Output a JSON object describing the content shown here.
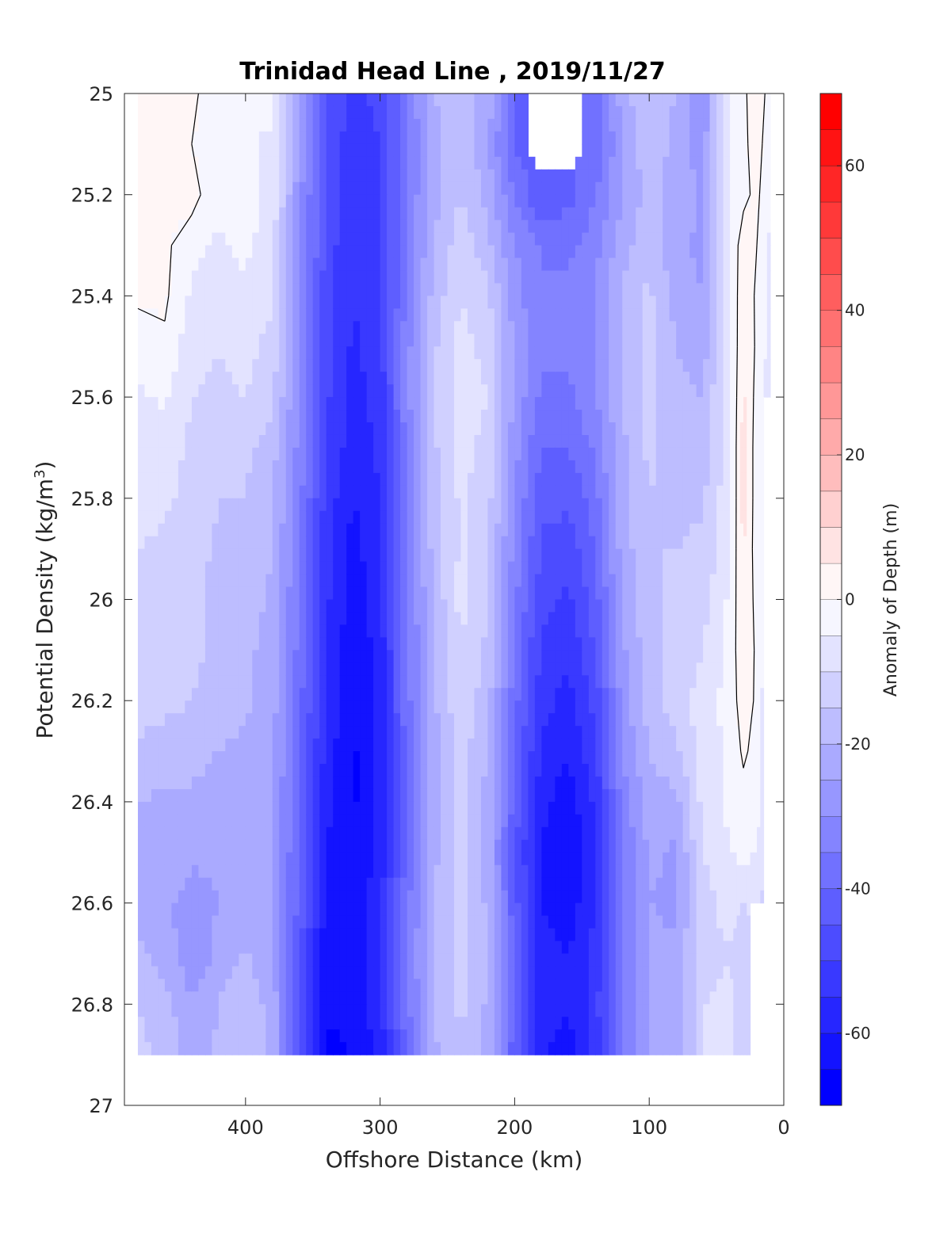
{
  "chart_data": {
    "type": "heatmap",
    "title": "Trinidad Head Line , 2019/11/27",
    "xlabel": "Offshore Distance (km)",
    "ylabel_main": "Potential Density (kg/m",
    "ylabel_sup": "3",
    "ylabel_close": ")",
    "colorbar_label": "Anomaly of Depth (m)",
    "xlim": [
      490,
      0
    ],
    "x_reversed": true,
    "ylim": [
      25,
      27
    ],
    "y_reversed": true,
    "clim": [
      -70,
      70
    ],
    "contour_step": 5,
    "x_ticks": [
      400,
      300,
      200,
      100,
      0
    ],
    "x_tick_labels": [
      "400",
      "300",
      "200",
      "100",
      "0"
    ],
    "y_ticks": [
      25,
      25.2,
      25.4,
      25.6,
      25.8,
      26,
      26.2,
      26.4,
      26.6,
      26.8,
      27
    ],
    "y_tick_labels": [
      "25",
      "25.2",
      "25.4",
      "25.6",
      "25.8",
      "26",
      "26.2",
      "26.4",
      "26.6",
      "26.8",
      "27"
    ],
    "colorbar_ticks": [
      -60,
      -40,
      -20,
      0,
      20,
      40,
      60
    ],
    "colorbar_tick_labels": [
      "-60",
      "-40",
      "-20",
      "0",
      "20",
      "40",
      "60"
    ],
    "zero_contour": true,
    "colors": {
      "negative": "#0000ff",
      "positive": "#ff0000",
      "zero": "#ffffff",
      "contour_line": "#000000"
    },
    "grid": {
      "x": [
        480,
        460,
        440,
        420,
        400,
        380,
        360,
        340,
        320,
        300,
        280,
        260,
        240,
        220,
        200,
        180,
        160,
        140,
        120,
        100,
        80,
        60,
        40,
        30,
        20,
        10
      ],
      "y": [
        25,
        25.1,
        25.2,
        25.3,
        25.4,
        25.5,
        25.6,
        25.7,
        25.8,
        25.9,
        26,
        26.1,
        26.2,
        26.3,
        26.4,
        26.5,
        26.6,
        26.7,
        26.8,
        26.9
      ],
      "valid_x_min": [
        480,
        480,
        480,
        480,
        480,
        480,
        480,
        480,
        480,
        480,
        480,
        480,
        480,
        480,
        480,
        480,
        480,
        480,
        480,
        480,
        480,
        480,
        480,
        480,
        480,
        480
      ],
      "valid_y_max_by_x": [
        26.9,
        26.9,
        26.9,
        26.9,
        26.9,
        26.9,
        26.9,
        26.9,
        26.9,
        26.9,
        26.9,
        26.9,
        26.9,
        26.9,
        26.9,
        26.9,
        26.9,
        26.9,
        26.9,
        26.9,
        26.9,
        26.9,
        26.9,
        26.9,
        26.6,
        25.6
      ],
      "z": [
        [
          2,
          1,
          1,
          -3,
          -5,
          -3,
          -25,
          -45,
          -52,
          -48,
          -35,
          -20,
          -18,
          -22,
          -40,
          null,
          null,
          -38,
          -22,
          -15,
          -20,
          -30,
          -2,
          -1,
          3,
          -2
        ],
        [
          3,
          2,
          0,
          -2,
          -4,
          -6,
          -27,
          -46,
          -53,
          -50,
          -36,
          -22,
          -16,
          -24,
          -42,
          null,
          null,
          -40,
          -25,
          -16,
          -22,
          -28,
          -2,
          -1,
          2,
          -3
        ],
        [
          3,
          1,
          2,
          -4,
          -2,
          -7,
          -28,
          -47,
          -54,
          -50,
          -35,
          -22,
          -15,
          -22,
          -35,
          -45,
          -42,
          -35,
          -25,
          -18,
          -22,
          -26,
          -2,
          -1,
          1,
          -4
        ],
        [
          2,
          1,
          -3,
          -6,
          -4,
          -8,
          -28,
          -47,
          -55,
          -51,
          -34,
          -20,
          -12,
          -18,
          -30,
          -36,
          -36,
          -32,
          -22,
          -16,
          -24,
          -26,
          -3,
          2,
          0,
          -6
        ],
        [
          1,
          1,
          -6,
          -8,
          -6,
          -9,
          -28,
          -48,
          -55,
          -52,
          -33,
          -18,
          -10,
          -14,
          -28,
          -34,
          -34,
          -30,
          -20,
          -14,
          -22,
          -25,
          -5,
          4,
          -1,
          -7
        ],
        [
          -3,
          -1,
          -8,
          -10,
          -8,
          -12,
          -28,
          -48,
          -56,
          -52,
          -32,
          -16,
          -8,
          -12,
          -26,
          -34,
          -34,
          -30,
          -20,
          -14,
          -20,
          -23,
          -6,
          5,
          -1,
          -7
        ],
        [
          -6,
          -4,
          -10,
          -12,
          -10,
          -14,
          -30,
          -49,
          -57,
          -53,
          -32,
          -15,
          -7,
          -10,
          -26,
          -36,
          -36,
          -31,
          -20,
          -14,
          -18,
          -20,
          -6,
          6,
          -2,
          -8
        ],
        [
          -7,
          -7,
          -11,
          -14,
          -14,
          -18,
          -32,
          -50,
          -58,
          -54,
          -33,
          -16,
          -8,
          -12,
          -28,
          -40,
          -40,
          -34,
          -21,
          -14,
          -18,
          -18,
          -6,
          7,
          -3,
          -8
        ],
        [
          -8,
          -9,
          -12,
          -15,
          -15,
          -19,
          -33,
          -52,
          -60,
          -55,
          -34,
          -17,
          -9,
          -13,
          -30,
          -43,
          -44,
          -37,
          -22,
          -15,
          -16,
          -16,
          -6,
          7,
          -3,
          -8
        ],
        [
          -10,
          -11,
          -13,
          -16,
          -17,
          -20,
          -35,
          -53,
          -62,
          -56,
          -35,
          -18,
          -9,
          -14,
          -32,
          -46,
          -48,
          -40,
          -23,
          -15,
          -15,
          -14,
          -5,
          6,
          -3,
          -8
        ],
        [
          -11,
          -12,
          -13,
          -17,
          -18,
          -21,
          -36,
          -54,
          -63,
          -57,
          -36,
          -19,
          -8,
          -15,
          -34,
          -48,
          -51,
          -42,
          -24,
          -16,
          -14,
          -12,
          -4,
          5,
          -2,
          -9
        ],
        [
          -12,
          -13,
          -13,
          -17,
          -19,
          -22,
          -37,
          -55,
          -64,
          -58,
          -37,
          -20,
          -10,
          -16,
          -36,
          -51,
          -54,
          -45,
          -26,
          -17,
          -13,
          -10,
          -3,
          4,
          -1,
          -10
        ],
        [
          -13,
          -14,
          -15,
          -18,
          -19,
          -23,
          -38,
          -56,
          -65,
          -58,
          -37,
          -21,
          -11,
          -18,
          -38,
          -53,
          -57,
          -48,
          -28,
          -18,
          -12,
          -8,
          -3,
          3,
          -1,
          -12
        ],
        [
          -16,
          -17,
          -18,
          -20,
          -21,
          -24,
          -39,
          -57,
          -66,
          -59,
          -38,
          -22,
          -13,
          -20,
          -40,
          -56,
          -60,
          -51,
          -30,
          -20,
          -16,
          -7,
          -4,
          1,
          -2,
          -12
        ],
        [
          -20,
          -21,
          -21,
          -22,
          -22,
          -25,
          -40,
          -58,
          -66,
          -59,
          -38,
          -22,
          -14,
          -22,
          -42,
          -58,
          -63,
          -54,
          -33,
          -22,
          -22,
          -8,
          -4,
          -2,
          -3,
          -13
        ],
        [
          -21,
          -22,
          -24,
          -24,
          -22,
          -25,
          -41,
          -60,
          -65,
          -58,
          -38,
          -21,
          -14,
          -22,
          -44,
          -61,
          -65,
          -56,
          -35,
          -24,
          -26,
          -10,
          -5,
          -4,
          -5,
          -14
        ],
        [
          -22,
          -24,
          -27,
          -25,
          -21,
          -24,
          -42,
          -62,
          -64,
          -57,
          -37,
          -20,
          -14,
          -21,
          -43,
          -60,
          -63,
          -55,
          -36,
          -25,
          -26,
          -12,
          -8,
          -10,
          -8,
          -15
        ],
        [
          -19,
          -23,
          -28,
          -24,
          -20,
          -23,
          -43,
          -63,
          -63,
          -56,
          -36,
          -19,
          -13,
          -20,
          -42,
          -58,
          -60,
          -53,
          -35,
          -24,
          -24,
          -12,
          -10,
          -14,
          -12,
          -16
        ],
        [
          -15,
          -18,
          -25,
          -20,
          -16,
          -22,
          -44,
          -64,
          -64,
          -57,
          -37,
          -20,
          -14,
          -21,
          -42,
          -58,
          -60,
          -52,
          -34,
          -24,
          -24,
          -10,
          -9,
          -12,
          -12,
          -16
        ],
        [
          -14,
          -16,
          -22,
          -19,
          -16,
          -22,
          -45,
          -66,
          -65,
          -58,
          -38,
          -21,
          -15,
          -22,
          -43,
          -60,
          -62,
          -53,
          -35,
          -25,
          -25,
          -9,
          -9,
          -12,
          -12,
          -16
        ]
      ]
    }
  }
}
